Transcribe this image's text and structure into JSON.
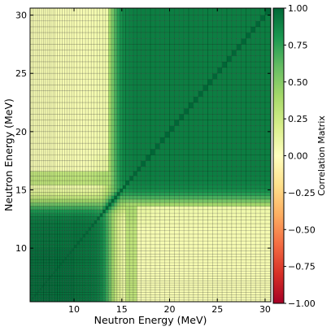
{
  "chart_data": {
    "type": "heatmap",
    "xlabel": "Neutron Energy (MeV)",
    "ylabel": "Neutron Energy (MeV)",
    "colorbar_label": "Correlation Matrix",
    "colormap": "RdYlGn",
    "xlim": [
      5.4,
      30.6
    ],
    "ylim": [
      5.4,
      30.6
    ],
    "x_ticks": [
      10,
      15,
      20,
      25,
      30
    ],
    "y_ticks": [
      10,
      15,
      20,
      25,
      30
    ],
    "clim": [
      -1.0,
      1.0
    ],
    "colorbar_ticks": [
      "1.00",
      "0.75",
      "0.50",
      "0.25",
      "0.00",
      "−0.25",
      "−0.50",
      "−0.75",
      "−1.00"
    ],
    "bin_edges_mev": [
      5.4,
      5.6,
      5.8,
      6.0,
      6.2,
      6.4,
      6.6,
      6.8,
      7.0,
      7.2,
      7.4,
      7.6,
      7.8,
      8.0,
      8.25,
      8.5,
      8.75,
      9.0,
      9.25,
      9.5,
      9.75,
      10.0,
      10.3,
      10.6,
      10.9,
      11.2,
      11.5,
      11.8,
      12.1,
      12.4,
      12.7,
      13.0,
      13.3,
      13.6,
      13.9,
      14.2,
      14.5,
      14.8,
      15.1,
      15.4,
      15.8,
      16.2,
      16.6,
      17.0,
      17.5,
      18.0,
      18.5,
      19.0,
      19.5,
      20.0,
      20.5,
      21.0,
      21.5,
      22.0,
      22.5,
      23.0,
      23.5,
      24.0,
      24.5,
      25.0,
      25.5,
      26.0,
      26.5,
      27.0,
      27.5,
      28.0,
      28.5,
      29.0,
      29.5,
      30.0,
      30.6
    ],
    "structure": {
      "low_energy_block": {
        "range_mev": [
          5.4,
          13.6
        ],
        "correlation": 0.95
      },
      "high_energy_block": {
        "range_mev": [
          15.4,
          30.6
        ],
        "correlation": 0.9
      },
      "cross_block_correlation": 0.05,
      "transition_zone_mev": [
        13.6,
        15.4
      ]
    }
  }
}
